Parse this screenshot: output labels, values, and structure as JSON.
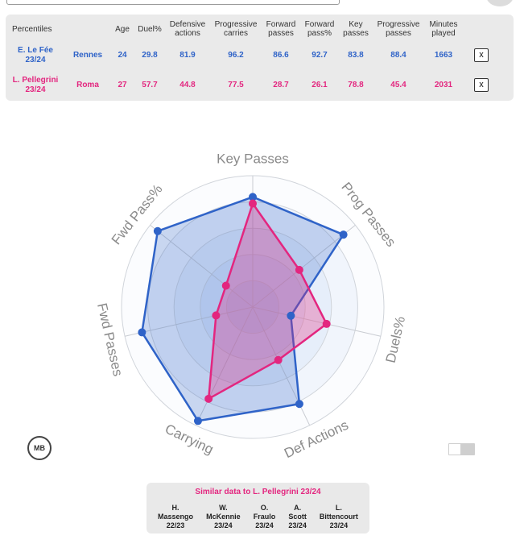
{
  "table": {
    "header": [
      "Percentiles",
      "",
      "Age",
      "Duel%",
      "Defensive actions",
      "Progressive carries",
      "Forward passes",
      "Forward pass%",
      "Key passes",
      "Progressive passes",
      "Minutes played"
    ],
    "remove_label": "x",
    "rows": [
      {
        "player": "E. Le Fée 23/24",
        "team": "Rennes",
        "age": "24",
        "duel": "29.8",
        "def": "81.9",
        "carries": "96.2",
        "fwd": "86.6",
        "fwdpct": "92.7",
        "key": "83.8",
        "prog": "88.4",
        "minutes": "1663",
        "color": "#2f63c8"
      },
      {
        "player": "L. Pellegrini 23/24",
        "team": "Roma",
        "age": "27",
        "duel": "57.7",
        "def": "44.8",
        "carries": "77.5",
        "fwd": "28.7",
        "fwdpct": "26.1",
        "key": "78.8",
        "prog": "45.4",
        "minutes": "2031",
        "color": "#e3267f"
      }
    ]
  },
  "chart_data": {
    "type": "radar",
    "axes": [
      "Key Passes",
      "Prog Passes",
      "Duels%",
      "Def Actions",
      "Carrying",
      "Fwd Passes",
      "Fwd Pass%"
    ],
    "range": [
      0,
      100
    ],
    "series": [
      {
        "name": "E. Le Fée 23/24",
        "color": "#2f63c8",
        "values": [
          83.8,
          88.4,
          29.8,
          81.9,
          96.2,
          86.6,
          92.7
        ]
      },
      {
        "name": "L. Pellegrini 23/24",
        "color": "#e3267f",
        "values": [
          78.8,
          45.4,
          57.7,
          44.8,
          77.5,
          28.7,
          26.1
        ]
      }
    ]
  },
  "logo": {
    "text": "MB"
  },
  "similar": {
    "title": "Similar data to L. Pellegrini 23/24",
    "items": [
      {
        "line1": "H.",
        "line2": "Massengo",
        "line3": "22/23"
      },
      {
        "line1": "W.",
        "line2": "McKennie",
        "line3": "23/24"
      },
      {
        "line1": "O.",
        "line2": "Fraulo",
        "line3": "23/24"
      },
      {
        "line1": "A.",
        "line2": "Scott",
        "line3": "23/24"
      },
      {
        "line1": "L.",
        "line2": "Bittencourt",
        "line3": "23/24"
      }
    ]
  }
}
